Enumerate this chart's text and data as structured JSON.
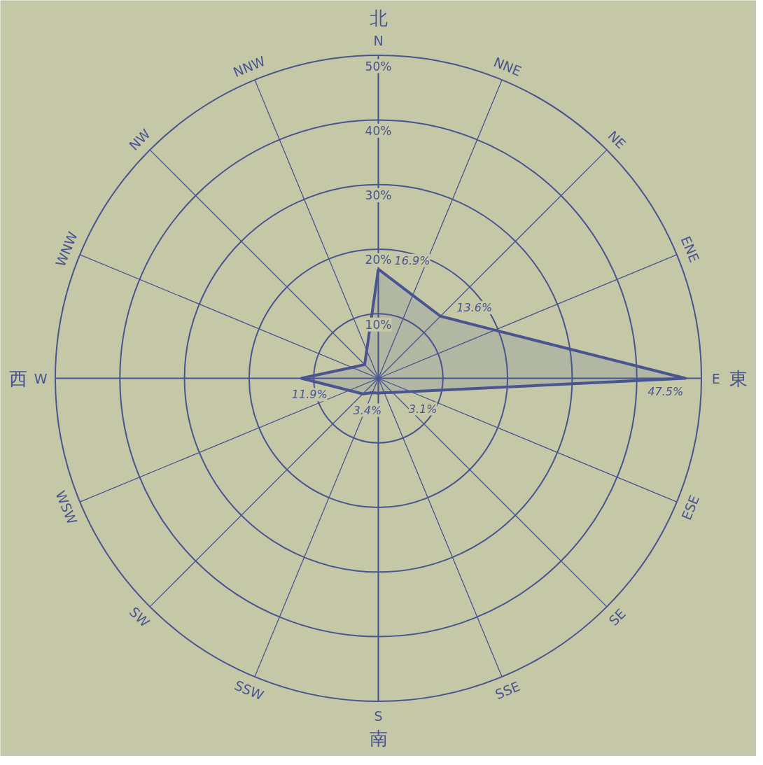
{
  "chart_data": {
    "type": "radar",
    "categories": [
      "N",
      "NNE",
      "NE",
      "ENE",
      "E",
      "ESE",
      "SE",
      "SSE",
      "S",
      "SSW",
      "SW",
      "WSW",
      "W",
      "WNW",
      "NW",
      "NNW"
    ],
    "series": [
      {
        "color": "#4a5490",
        "values": [
          16.9,
          13.9,
          13.6,
          19.5,
          47.5,
          5.4,
          3.1,
          2.4,
          2.3,
          2.4,
          3.4,
          4.9,
          11.9,
          4.4,
          3.0,
          4.7
        ],
        "value_labels": [
          "16.9%",
          null,
          "13.6%",
          null,
          "47.5%",
          null,
          "3.1%",
          null,
          null,
          null,
          "3.4%",
          null,
          "11.9%",
          null,
          null,
          null
        ]
      }
    ],
    "ylim": [
      0,
      50
    ],
    "yticks": [
      {
        "value": 10,
        "label": "10%"
      },
      {
        "value": 20,
        "label": "20%"
      },
      {
        "value": 30,
        "label": "30%"
      },
      {
        "value": 40,
        "label": "40%"
      },
      {
        "value": 50,
        "label": "50%"
      }
    ],
    "grid": true,
    "marker": "none",
    "line_style": "solid",
    "annotations": [
      "北",
      "東",
      "南",
      "西"
    ]
  }
}
